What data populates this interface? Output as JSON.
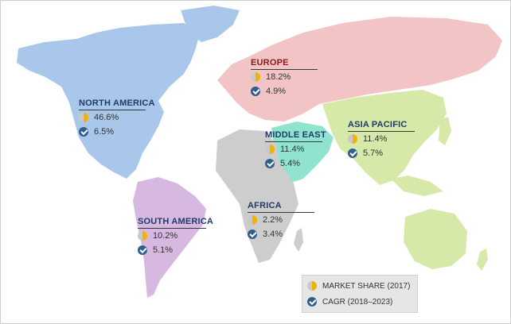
{
  "regions": {
    "north_america": {
      "title": "NORTH AMERICA",
      "share": "46.6%",
      "cagr": "6.5%"
    },
    "europe": {
      "title": "EUROPE",
      "share": "18.2%",
      "cagr": "4.9%"
    },
    "middle_east": {
      "title": "MIDDLE EAST",
      "share": "11.4%",
      "cagr": "5.4%"
    },
    "asia_pacific": {
      "title": "ASIA PACIFIC",
      "share": "11.4%",
      "cagr": "5.7%"
    },
    "africa": {
      "title": "AFRICA",
      "share": "2.2%",
      "cagr": "3.4%"
    },
    "south_america": {
      "title": "SOUTH AMERICA",
      "share": "10.2%",
      "cagr": "5.1%"
    }
  },
  "legend": {
    "share_label": "MARKET SHARE (2017)",
    "cagr_label": "CAGR (2018–2023)"
  },
  "icons": {
    "share": "pie-chart-icon",
    "cagr": "growth-arrow-icon"
  },
  "colors": {
    "north_america": "#a9c7ea",
    "europe": "#f3c4c6",
    "middle_east": "#8fe3cf",
    "asia_pacific": "#d6e9a8",
    "africa": "#cdcdcd",
    "south_america": "#d7b8e0",
    "title_dark_red": "#8b1a1a",
    "title_dark_blue": "#1f3b66"
  }
}
